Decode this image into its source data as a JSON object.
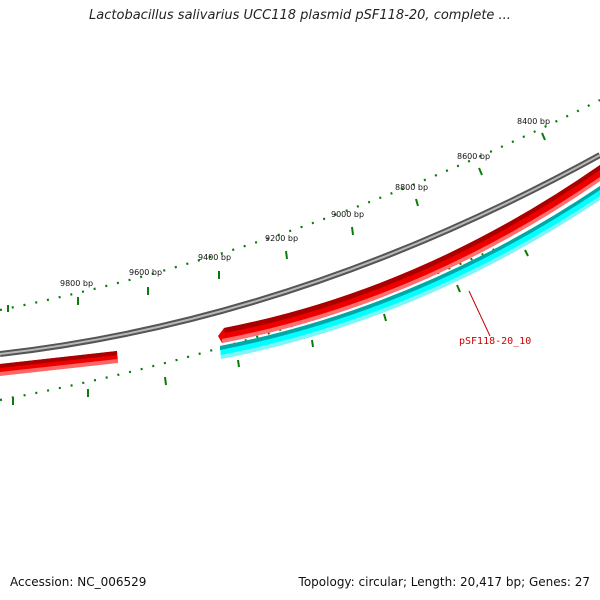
{
  "title": "Lactobacillus salivarius UCC118 plasmid pSF118-20, complete ...",
  "footer": {
    "accession": "Accession: NC_006529",
    "summary": "Topology: circular; Length: 20,417 bp; Genes: 27"
  },
  "scale_labels": [
    "8400 bp",
    "8600 bp",
    "8800 bp",
    "9000 bp",
    "9200 bp",
    "9400 bp",
    "9600 bp",
    "9800 bp"
  ],
  "features": [
    {
      "id": "pSF118-20_10",
      "strand": "minus",
      "label": "pSF118-20_10"
    }
  ],
  "colors": {
    "backbone": "#808080",
    "forward_gene": "#ff0000",
    "reverse_gene": "#00ffff",
    "tick": "#0a7a0a",
    "callout": "#cc0000"
  }
}
